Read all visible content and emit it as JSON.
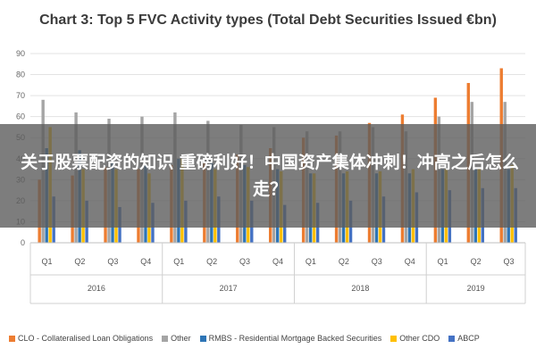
{
  "colors": {
    "CLO": "#ed7d31",
    "Other": "#a5a5a5",
    "RMBS": "#2e75b6",
    "OtherCDO": "#ffc000",
    "ABCP": "#4472c4",
    "banner_bg": "#5a5a5a"
  },
  "banner_text": "关于股票配资的知识 重磅利好！中国资产集体冲刺！冲高之后怎么走？",
  "chart_data": {
    "type": "bar",
    "title": "Chart 3: Top 5 FVC Activity types (Total Debt Securities Issued €bn)",
    "categories": [
      "Q1",
      "Q2",
      "Q3",
      "Q4",
      "Q1",
      "Q2",
      "Q3",
      "Q4",
      "Q1",
      "Q2",
      "Q3",
      "Q4",
      "Q1",
      "Q2",
      "Q3"
    ],
    "groups": [
      {
        "label": "2016",
        "count": 4
      },
      {
        "label": "2017",
        "count": 4
      },
      {
        "label": "2018",
        "count": 4
      },
      {
        "label": "2019",
        "count": 3
      }
    ],
    "ylim": [
      0,
      90
    ],
    "yticks": [
      0,
      10,
      20,
      30,
      40,
      50,
      60,
      70,
      80,
      90
    ],
    "grid": true,
    "legend_position": "bottom",
    "series": [
      {
        "name": "CLO - Collateralised Loan Obligations",
        "color_key": "CLO",
        "values": [
          30,
          32,
          36,
          35,
          37,
          38,
          42,
          45,
          50,
          51,
          57,
          61,
          69,
          76,
          83
        ]
      },
      {
        "name": "Other",
        "color_key": "Other",
        "values": [
          68,
          62,
          59,
          60,
          62,
          58,
          56,
          55,
          53,
          53,
          55,
          53,
          60,
          67,
          67
        ]
      },
      {
        "name": "RMBS - Residential Mortgage Backed Securities",
        "color_key": "RMBS",
        "values": [
          45,
          44,
          38,
          37,
          40,
          38,
          37,
          35,
          33,
          33,
          33,
          33,
          35,
          35,
          35
        ]
      },
      {
        "name": "Other CDO",
        "color_key": "OtherCDO",
        "values": [
          55,
          35,
          35,
          33,
          40,
          35,
          36,
          34,
          33,
          34,
          34,
          35,
          35,
          35,
          37
        ]
      },
      {
        "name": "ABCP",
        "color_key": "ABCP",
        "values": [
          22,
          20,
          17,
          19,
          20,
          22,
          20,
          18,
          19,
          20,
          22,
          24,
          25,
          26,
          26
        ]
      }
    ]
  }
}
